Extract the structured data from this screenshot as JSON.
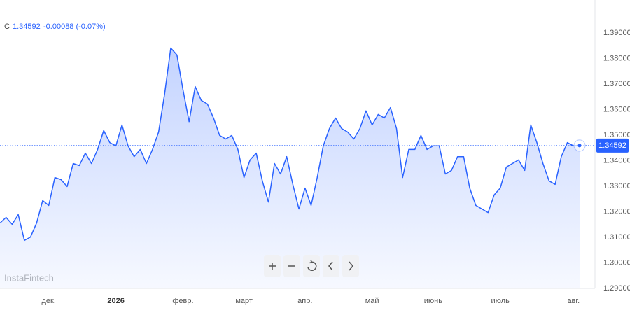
{
  "chart_data": {
    "type": "line",
    "symbol": "C",
    "close": "1.34592",
    "change": "-0.00088 (-0.07%)",
    "watermark": "InstaFintech",
    "categories": [
      null,
      null,
      null,
      null,
      null,
      null,
      null,
      null,
      "дек.",
      null,
      null,
      null,
      null,
      null,
      null,
      null,
      null,
      null,
      null,
      "2026",
      null,
      null,
      null,
      null,
      null,
      null,
      null,
      null,
      null,
      null,
      "февр.",
      null,
      null,
      null,
      null,
      null,
      null,
      null,
      null,
      null,
      "март",
      null,
      null,
      null,
      null,
      null,
      null,
      null,
      null,
      null,
      "апр.",
      null,
      null,
      null,
      null,
      null,
      null,
      null,
      null,
      null,
      null,
      "май",
      null,
      null,
      null,
      null,
      null,
      null,
      null,
      null,
      null,
      "июнь",
      null,
      null,
      null,
      null,
      null,
      null,
      null,
      null,
      null,
      null,
      "июль",
      null,
      null,
      null,
      null,
      null,
      null,
      null,
      null,
      null,
      null,
      null,
      "авг.",
      null
    ],
    "series": [
      {
        "color": "#2962ff",
        "values": [
          1.3156,
          1.3178,
          1.3151,
          1.3189,
          1.3088,
          1.3101,
          1.3156,
          1.3244,
          1.3225,
          1.3334,
          1.3326,
          1.3299,
          1.3389,
          1.3381,
          1.343,
          1.3389,
          1.3444,
          1.3518,
          1.3471,
          1.3458,
          1.354,
          1.3458,
          1.3416,
          1.3444,
          1.3389,
          1.3444,
          1.3512,
          1.3663,
          1.3841,
          1.3814,
          1.3677,
          1.3553,
          1.369,
          1.3636,
          1.3622,
          1.3567,
          1.3499,
          1.3485,
          1.3499,
          1.3444,
          1.3334,
          1.3403,
          1.343,
          1.3321,
          1.3238,
          1.3389,
          1.3348,
          1.3416,
          1.3307,
          1.3211,
          1.3293,
          1.3225,
          1.3334,
          1.3458,
          1.3526,
          1.3567,
          1.3526,
          1.3512,
          1.3485,
          1.3526,
          1.3595,
          1.354,
          1.3581,
          1.3567,
          1.3608,
          1.3526,
          1.3334,
          1.3444,
          1.3444,
          1.3499,
          1.3444,
          1.3458,
          1.3458,
          1.3348,
          1.3362,
          1.3416,
          1.3416,
          1.3293,
          1.3225,
          1.3211,
          1.3197,
          1.3266,
          1.3293,
          1.3375,
          1.3389,
          1.3403,
          1.3362,
          1.354,
          1.3471,
          1.3389,
          1.3321,
          1.3307,
          1.3416,
          1.3471,
          1.3458,
          1.34592
        ]
      }
    ],
    "ylim": [
      1.29,
      1.4
    ],
    "yticks": [
      {
        "value": 1.29,
        "label": "1.29000"
      },
      {
        "value": 1.3,
        "label": "1.30000"
      },
      {
        "value": 1.31,
        "label": "1.31000"
      },
      {
        "value": 1.32,
        "label": "1.32000"
      },
      {
        "value": 1.33,
        "label": "1.33000"
      },
      {
        "value": 1.34,
        "label": "1.34000"
      },
      {
        "value": 1.35,
        "label": "1.35000"
      },
      {
        "value": 1.36,
        "label": "1.36000"
      },
      {
        "value": 1.37,
        "label": "1.37000"
      },
      {
        "value": 1.38,
        "label": "1.38000"
      },
      {
        "value": 1.39,
        "label": "1.39000"
      }
    ]
  }
}
